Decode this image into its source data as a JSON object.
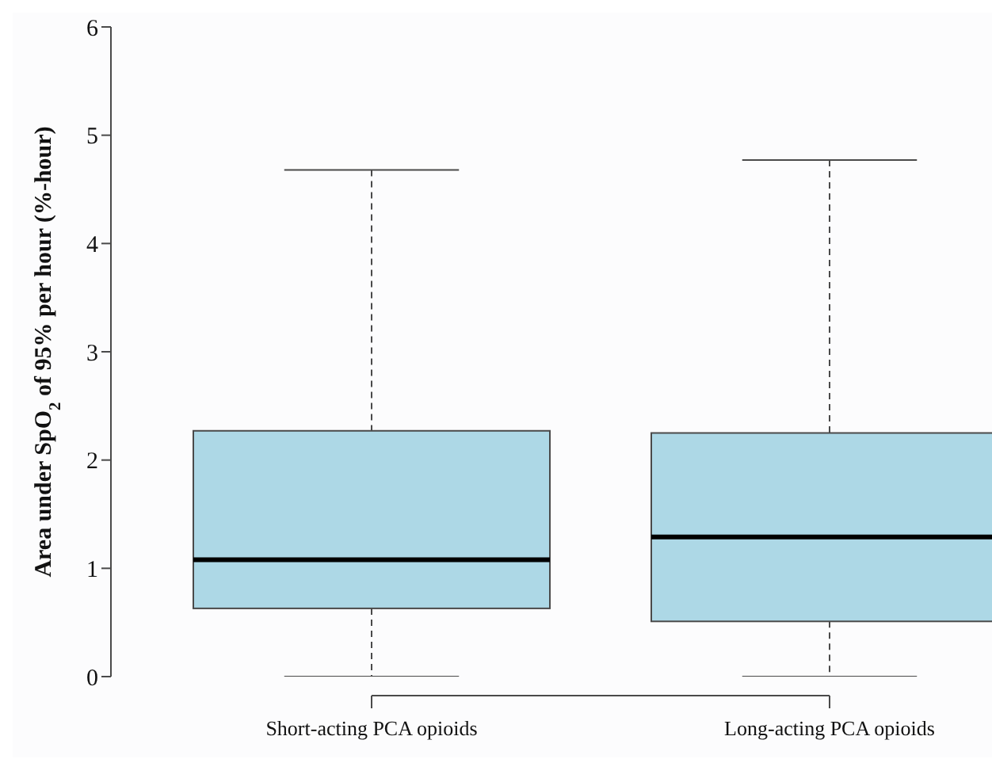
{
  "chart_data": {
    "type": "box",
    "ylabel": "Area under SpO$_{2}$ of 95% per hour (%-hour)",
    "categories": [
      "Short-acting PCA opioids",
      "Long-acting PCA opioids"
    ],
    "color": "#add8e6",
    "boxes": [
      {
        "low": 0,
        "q1": 0.63,
        "median": 1.08,
        "q3": 2.27,
        "high": 4.68
      },
      {
        "low": 0,
        "q1": 0.51,
        "median": 1.29,
        "q3": 2.25,
        "high": 4.77
      }
    ],
    "ylim": [
      0,
      6
    ],
    "yticks": [
      0,
      1,
      2,
      3,
      4,
      5,
      6
    ]
  }
}
